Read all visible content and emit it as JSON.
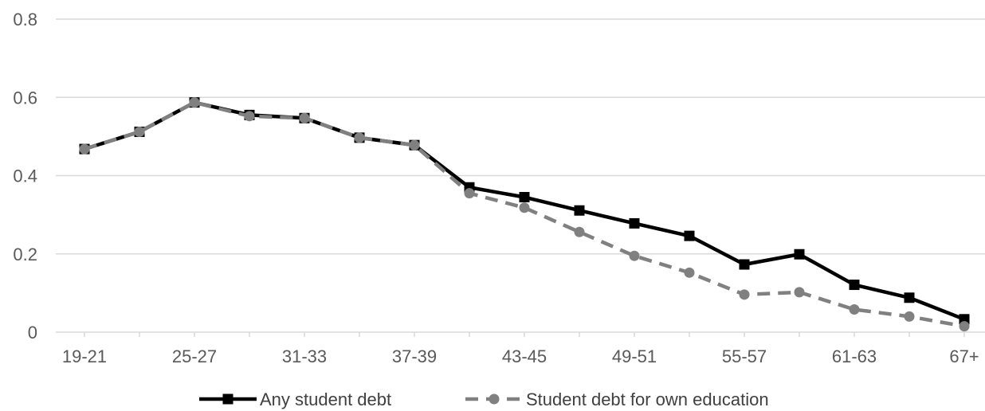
{
  "chart_data": {
    "type": "line",
    "title": "",
    "xlabel": "",
    "ylabel": "",
    "x": [
      "19-21",
      "22-24",
      "25-27",
      "28-30",
      "31-33",
      "34-36",
      "37-39",
      "40-42",
      "43-45",
      "46-48",
      "49-51",
      "52-54",
      "55-57",
      "58-60",
      "61-63",
      "64-66",
      "67+"
    ],
    "x_tick_labels_shown": [
      "19-21",
      "25-27",
      "31-33",
      "37-39",
      "43-45",
      "49-51",
      "55-57",
      "61-63",
      "67+"
    ],
    "ylim": [
      0,
      0.8
    ],
    "y_ticks": [
      0,
      0.2,
      0.4,
      0.6,
      0.8
    ],
    "y_tick_labels": [
      "0",
      "0.2",
      "0.4",
      "0.6",
      "0.8"
    ],
    "grid": true,
    "legend_position": "bottom",
    "series": [
      {
        "name": "Any student debt",
        "color": "#000000",
        "style": "solid",
        "marker": "square",
        "values": [
          0.468,
          0.512,
          0.587,
          0.555,
          0.547,
          0.497,
          0.478,
          0.37,
          0.345,
          0.311,
          0.278,
          0.246,
          0.173,
          0.199,
          0.121,
          0.088,
          0.033
        ]
      },
      {
        "name": "Student debt for own education",
        "color": "#808080",
        "style": "dashed",
        "marker": "circle",
        "values": [
          0.468,
          0.512,
          0.587,
          0.552,
          0.547,
          0.497,
          0.478,
          0.355,
          0.318,
          0.256,
          0.195,
          0.152,
          0.096,
          0.102,
          0.058,
          0.04,
          0.015
        ]
      }
    ]
  }
}
